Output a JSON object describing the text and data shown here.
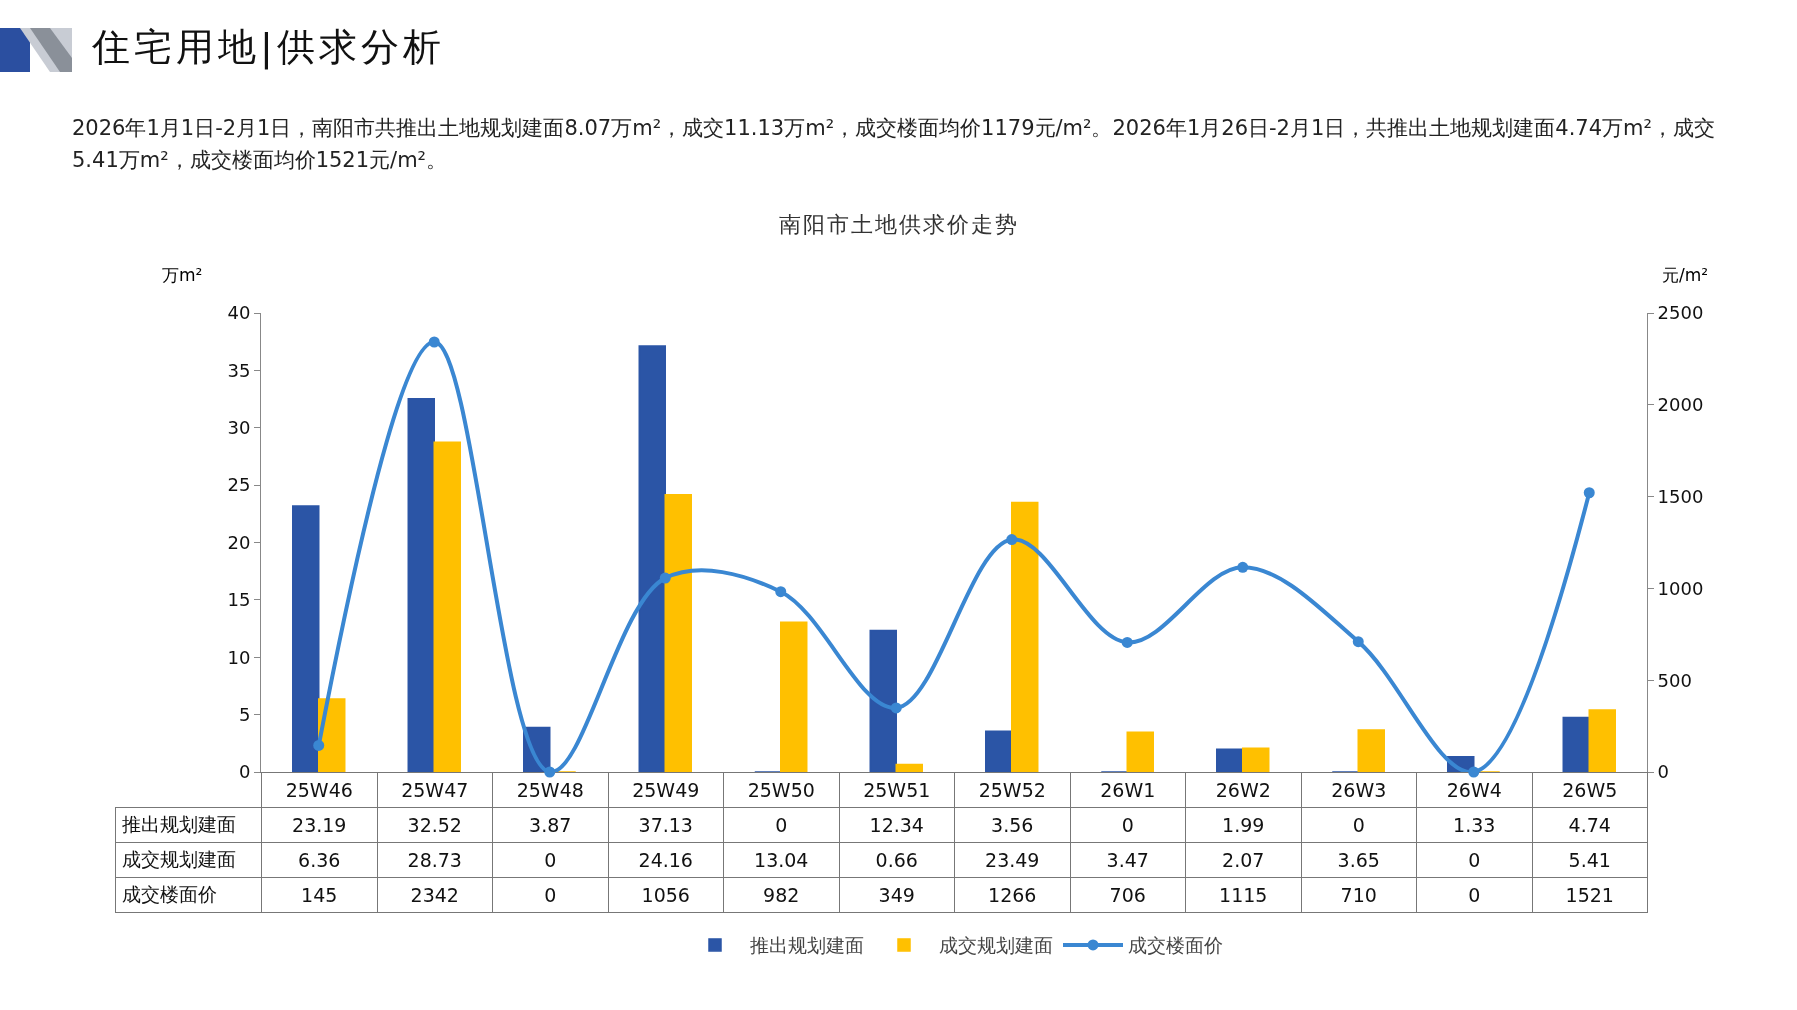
{
  "chart_data": {
    "type": "bar",
    "title": "住宅用地|供求分析",
    "subtitle": "2026年1月1日-2月1日，南阳市共推出土地规划建面8.07万m²，成交11.13万m²，成交楼面均价1179元/m²。2026年1月26日-2月1日，共推出土地规划建面4.74万m²，成交5.41万m²，成交楼面均价1521元/m²。",
    "annotations": [
      "南阳市土地供求价走势"
    ],
    "ylabel": "万m²",
    "y2label": "元/m²",
    "categories": [
      "25W46",
      "25W47",
      "25W48",
      "25W49",
      "25W50",
      "25W51",
      "25W52",
      "26W1",
      "26W2",
      "26W3",
      "26W4",
      "26W5"
    ],
    "series": [
      {
        "name": "推出规划建面",
        "color": "#2b55a6",
        "values": [
          23.19,
          32.52,
          3.87,
          37.13,
          0,
          12.34,
          3.56,
          0,
          1.99,
          0,
          1.33,
          4.74
        ]
      },
      {
        "name": "成交规划建面",
        "color": "#ffc000",
        "values": [
          6.36,
          28.73,
          0,
          24.16,
          13.04,
          0.66,
          23.49,
          3.47,
          2.07,
          3.65,
          0,
          5.41
        ]
      },
      {
        "name": "成交楼面价",
        "type": "line",
        "axis": "y2",
        "color": "#3a87d2",
        "values": [
          145,
          2342,
          0,
          1056,
          982,
          349,
          1266,
          706,
          1115,
          710,
          0,
          1521
        ]
      }
    ],
    "ylim": [
      0,
      40
    ],
    "yticks": [
      0,
      5,
      10,
      15,
      20,
      25,
      30,
      35,
      40
    ],
    "y2lim": [
      0,
      2500
    ],
    "y2ticks": [
      0,
      500,
      1000,
      1500,
      2000,
      2500
    ],
    "grid": false,
    "legend": "bottom",
    "marker": "circle",
    "data_labels": true
  }
}
